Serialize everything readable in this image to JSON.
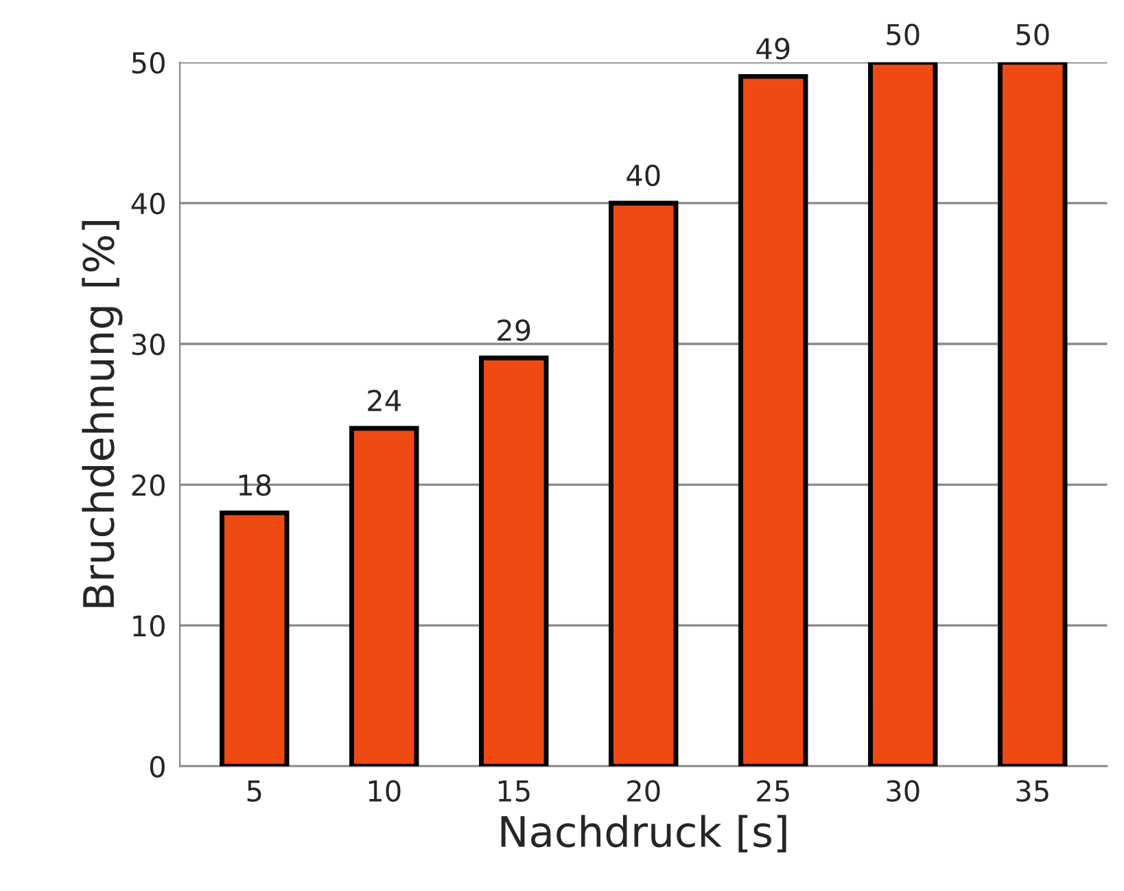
{
  "chart_data": {
    "type": "bar",
    "xlabel": "Nachdruck [s]",
    "ylabel": "Bruchdehnung [%]",
    "categories": [
      "5",
      "10",
      "15",
      "20",
      "25",
      "30",
      "35"
    ],
    "values": [
      18,
      24,
      29,
      40,
      49,
      50,
      50
    ],
    "color": "#f04a14",
    "ylim": [
      0,
      50
    ],
    "yticks": [
      0,
      10,
      20,
      30,
      40,
      50
    ],
    "grid": "y",
    "data_labels": true
  }
}
